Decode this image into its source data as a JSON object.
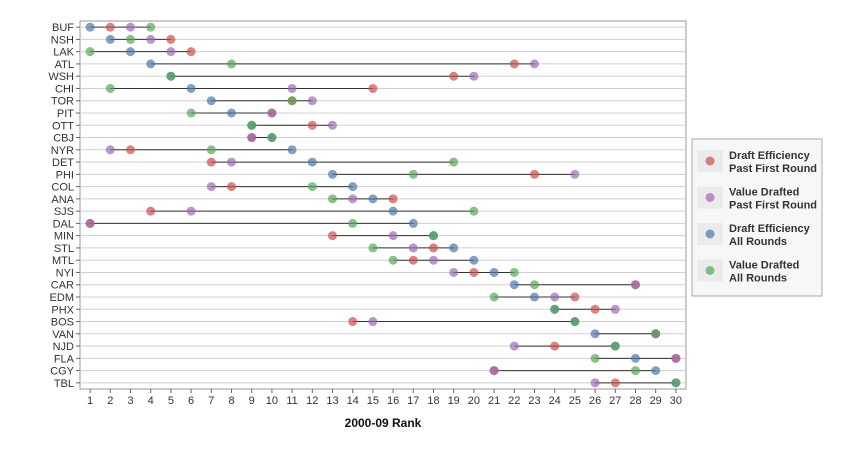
{
  "chart_data": {
    "type": "scatter",
    "title": "",
    "xlabel": "2000-09 Rank",
    "ylabel": "",
    "xlim": [
      0.5,
      30.5
    ],
    "x_ticks": [
      1,
      2,
      3,
      4,
      5,
      6,
      7,
      8,
      9,
      10,
      11,
      12,
      13,
      14,
      15,
      16,
      17,
      18,
      19,
      20,
      21,
      22,
      23,
      24,
      25,
      26,
      27,
      28,
      29,
      30
    ],
    "grid": "horizontal",
    "legend_position": "right",
    "categories": [
      "BUF",
      "NSH",
      "LAK",
      "ATL",
      "WSH",
      "CHI",
      "TOR",
      "PIT",
      "OTT",
      "CBJ",
      "NYR",
      "DET",
      "PHI",
      "COL",
      "ANA",
      "SJS",
      "DAL",
      "MIN",
      "STL",
      "MTL",
      "NYI",
      "CAR",
      "EDM",
      "PHX",
      "BOS",
      "VAN",
      "NJD",
      "FLA",
      "CGY",
      "TBL"
    ],
    "series": [
      {
        "name": "Draft Efficiency Past First Round",
        "color": "#c9504e",
        "values": [
          2,
          5,
          6,
          22,
          19,
          15,
          11,
          10,
          12,
          9,
          3,
          7,
          23,
          8,
          16,
          4,
          1,
          13,
          18,
          17,
          20,
          28,
          25,
          26,
          14,
          29,
          24,
          30,
          21,
          27
        ]
      },
      {
        "name": "Value Drafted Past First Round",
        "color": "#9b6bb0",
        "values": [
          3,
          4,
          5,
          23,
          20,
          11,
          12,
          10,
          13,
          9,
          2,
          8,
          25,
          7,
          14,
          6,
          1,
          16,
          17,
          18,
          19,
          28,
          24,
          27,
          15,
          29,
          22,
          30,
          21,
          26
        ]
      },
      {
        "name": "Draft Efficiency All Rounds",
        "color": "#4e76aa",
        "values": [
          1,
          2,
          3,
          4,
          5,
          6,
          7,
          8,
          9,
          10,
          11,
          12,
          13,
          14,
          15,
          16,
          17,
          18,
          19,
          20,
          21,
          22,
          23,
          24,
          25,
          26,
          27,
          28,
          29,
          30
        ]
      },
      {
        "name": "Value Drafted All Rounds",
        "color": "#57a55a",
        "values": [
          4,
          3,
          1,
          8,
          5,
          2,
          11,
          6,
          9,
          10,
          7,
          19,
          17,
          12,
          13,
          20,
          14,
          18,
          15,
          16,
          22,
          23,
          21,
          24,
          25,
          29,
          27,
          26,
          28,
          30
        ]
      }
    ]
  },
  "legend": [
    {
      "line1": "Draft Efficiency",
      "line2": "Past First Round",
      "color": "#c9504e"
    },
    {
      "line1": "Value Drafted",
      "line2": "Past First Round",
      "color": "#9b6bb0"
    },
    {
      "line1": "Draft Efficiency",
      "line2": "All Rounds",
      "color": "#4e76aa"
    },
    {
      "line1": "Value Drafted",
      "line2": "All Rounds",
      "color": "#57a55a"
    }
  ]
}
